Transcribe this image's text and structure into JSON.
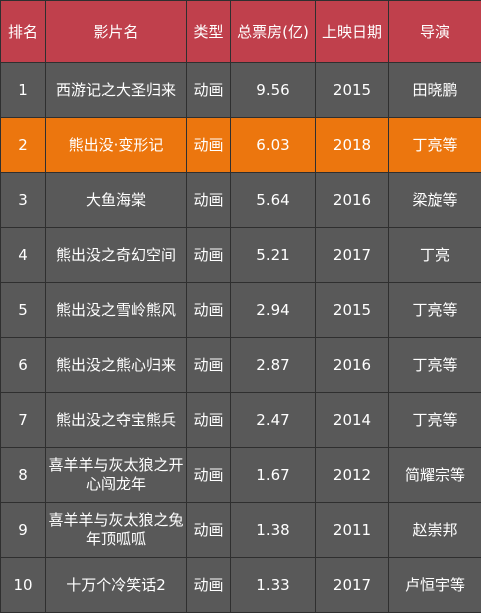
{
  "colors": {
    "header_bg": "#c0404c",
    "row_bg": "#595959",
    "highlight_bg": "#ec760e",
    "grid_line": "#2f2f2f",
    "text": "#ffffff"
  },
  "table": {
    "headers": {
      "rank": "排名",
      "title": "影片名",
      "type": "类型",
      "box_office": "总票房(亿)",
      "release_date": "上映日期",
      "director": "导演"
    },
    "highlight_row": 2,
    "rows": [
      {
        "rank": "1",
        "title": "西游记之大圣归来",
        "type": "动画",
        "box_office": "9.56",
        "release_date": "2015",
        "director": "田晓鹏"
      },
      {
        "rank": "2",
        "title": "熊出没·变形记",
        "type": "动画",
        "box_office": "6.03",
        "release_date": "2018",
        "director": "丁亮等"
      },
      {
        "rank": "3",
        "title": "大鱼海棠",
        "type": "动画",
        "box_office": "5.64",
        "release_date": "2016",
        "director": "梁旋等"
      },
      {
        "rank": "4",
        "title": "熊出没之奇幻空间",
        "type": "动画",
        "box_office": "5.21",
        "release_date": "2017",
        "director": "丁亮"
      },
      {
        "rank": "5",
        "title": "熊出没之雪岭熊风",
        "type": "动画",
        "box_office": "2.94",
        "release_date": "2015",
        "director": "丁亮等"
      },
      {
        "rank": "6",
        "title": "熊出没之熊心归来",
        "type": "动画",
        "box_office": "2.87",
        "release_date": "2016",
        "director": "丁亮等"
      },
      {
        "rank": "7",
        "title": "熊出没之夺宝熊兵",
        "type": "动画",
        "box_office": "2.47",
        "release_date": "2014",
        "director": "丁亮等"
      },
      {
        "rank": "8",
        "title": "喜羊羊与灰太狼之开心闯龙年",
        "type": "动画",
        "box_office": "1.67",
        "release_date": "2012",
        "director": "简耀宗等"
      },
      {
        "rank": "9",
        "title": "喜羊羊与灰太狼之兔年顶呱呱",
        "type": "动画",
        "box_office": "1.38",
        "release_date": "2011",
        "director": "赵崇邦"
      },
      {
        "rank": "10",
        "title": "十万个冷笑话2",
        "type": "动画",
        "box_office": "1.33",
        "release_date": "2017",
        "director": "卢恒宇等"
      }
    ]
  }
}
